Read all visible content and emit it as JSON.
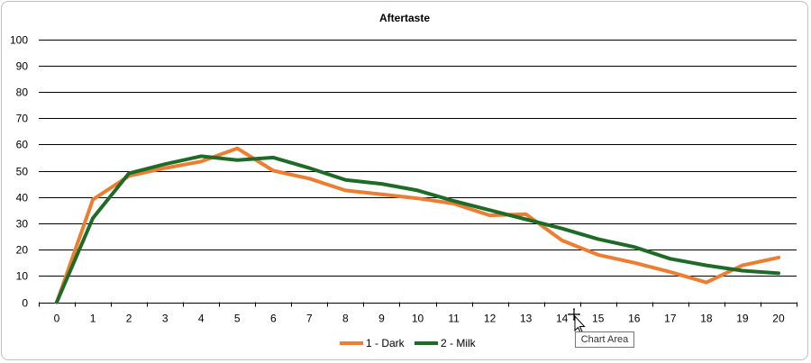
{
  "chart_data": {
    "type": "line",
    "title": "Aftertaste",
    "categories": [
      "0",
      "1",
      "2",
      "3",
      "4",
      "5",
      "6",
      "7",
      "8",
      "9",
      "10",
      "11",
      "12",
      "13",
      "14",
      "15",
      "16",
      "17",
      "18",
      "19",
      "20"
    ],
    "ylim": [
      0,
      100
    ],
    "yticks": [
      0,
      10,
      20,
      30,
      40,
      50,
      60,
      70,
      80,
      90,
      100
    ],
    "grid": true,
    "legend_position": "bottom",
    "series": [
      {
        "name": "1 - Dark",
        "color": "#ED7D31",
        "values": [
          0,
          39,
          48,
          51,
          53.5,
          58.5,
          50,
          47,
          42.5,
          41,
          39.5,
          37.5,
          33,
          33.5,
          23.5,
          18,
          15,
          11.5,
          7.5,
          14,
          17
        ]
      },
      {
        "name": "2 - Milk",
        "color": "#1E6B28",
        "values": [
          0,
          32,
          49,
          52.5,
          55.5,
          54,
          55,
          51,
          46.5,
          45,
          42.5,
          38.5,
          35,
          31.5,
          28,
          24,
          21,
          16.5,
          14,
          12,
          11
        ]
      }
    ]
  },
  "tooltip": {
    "text": "Chart Area"
  }
}
